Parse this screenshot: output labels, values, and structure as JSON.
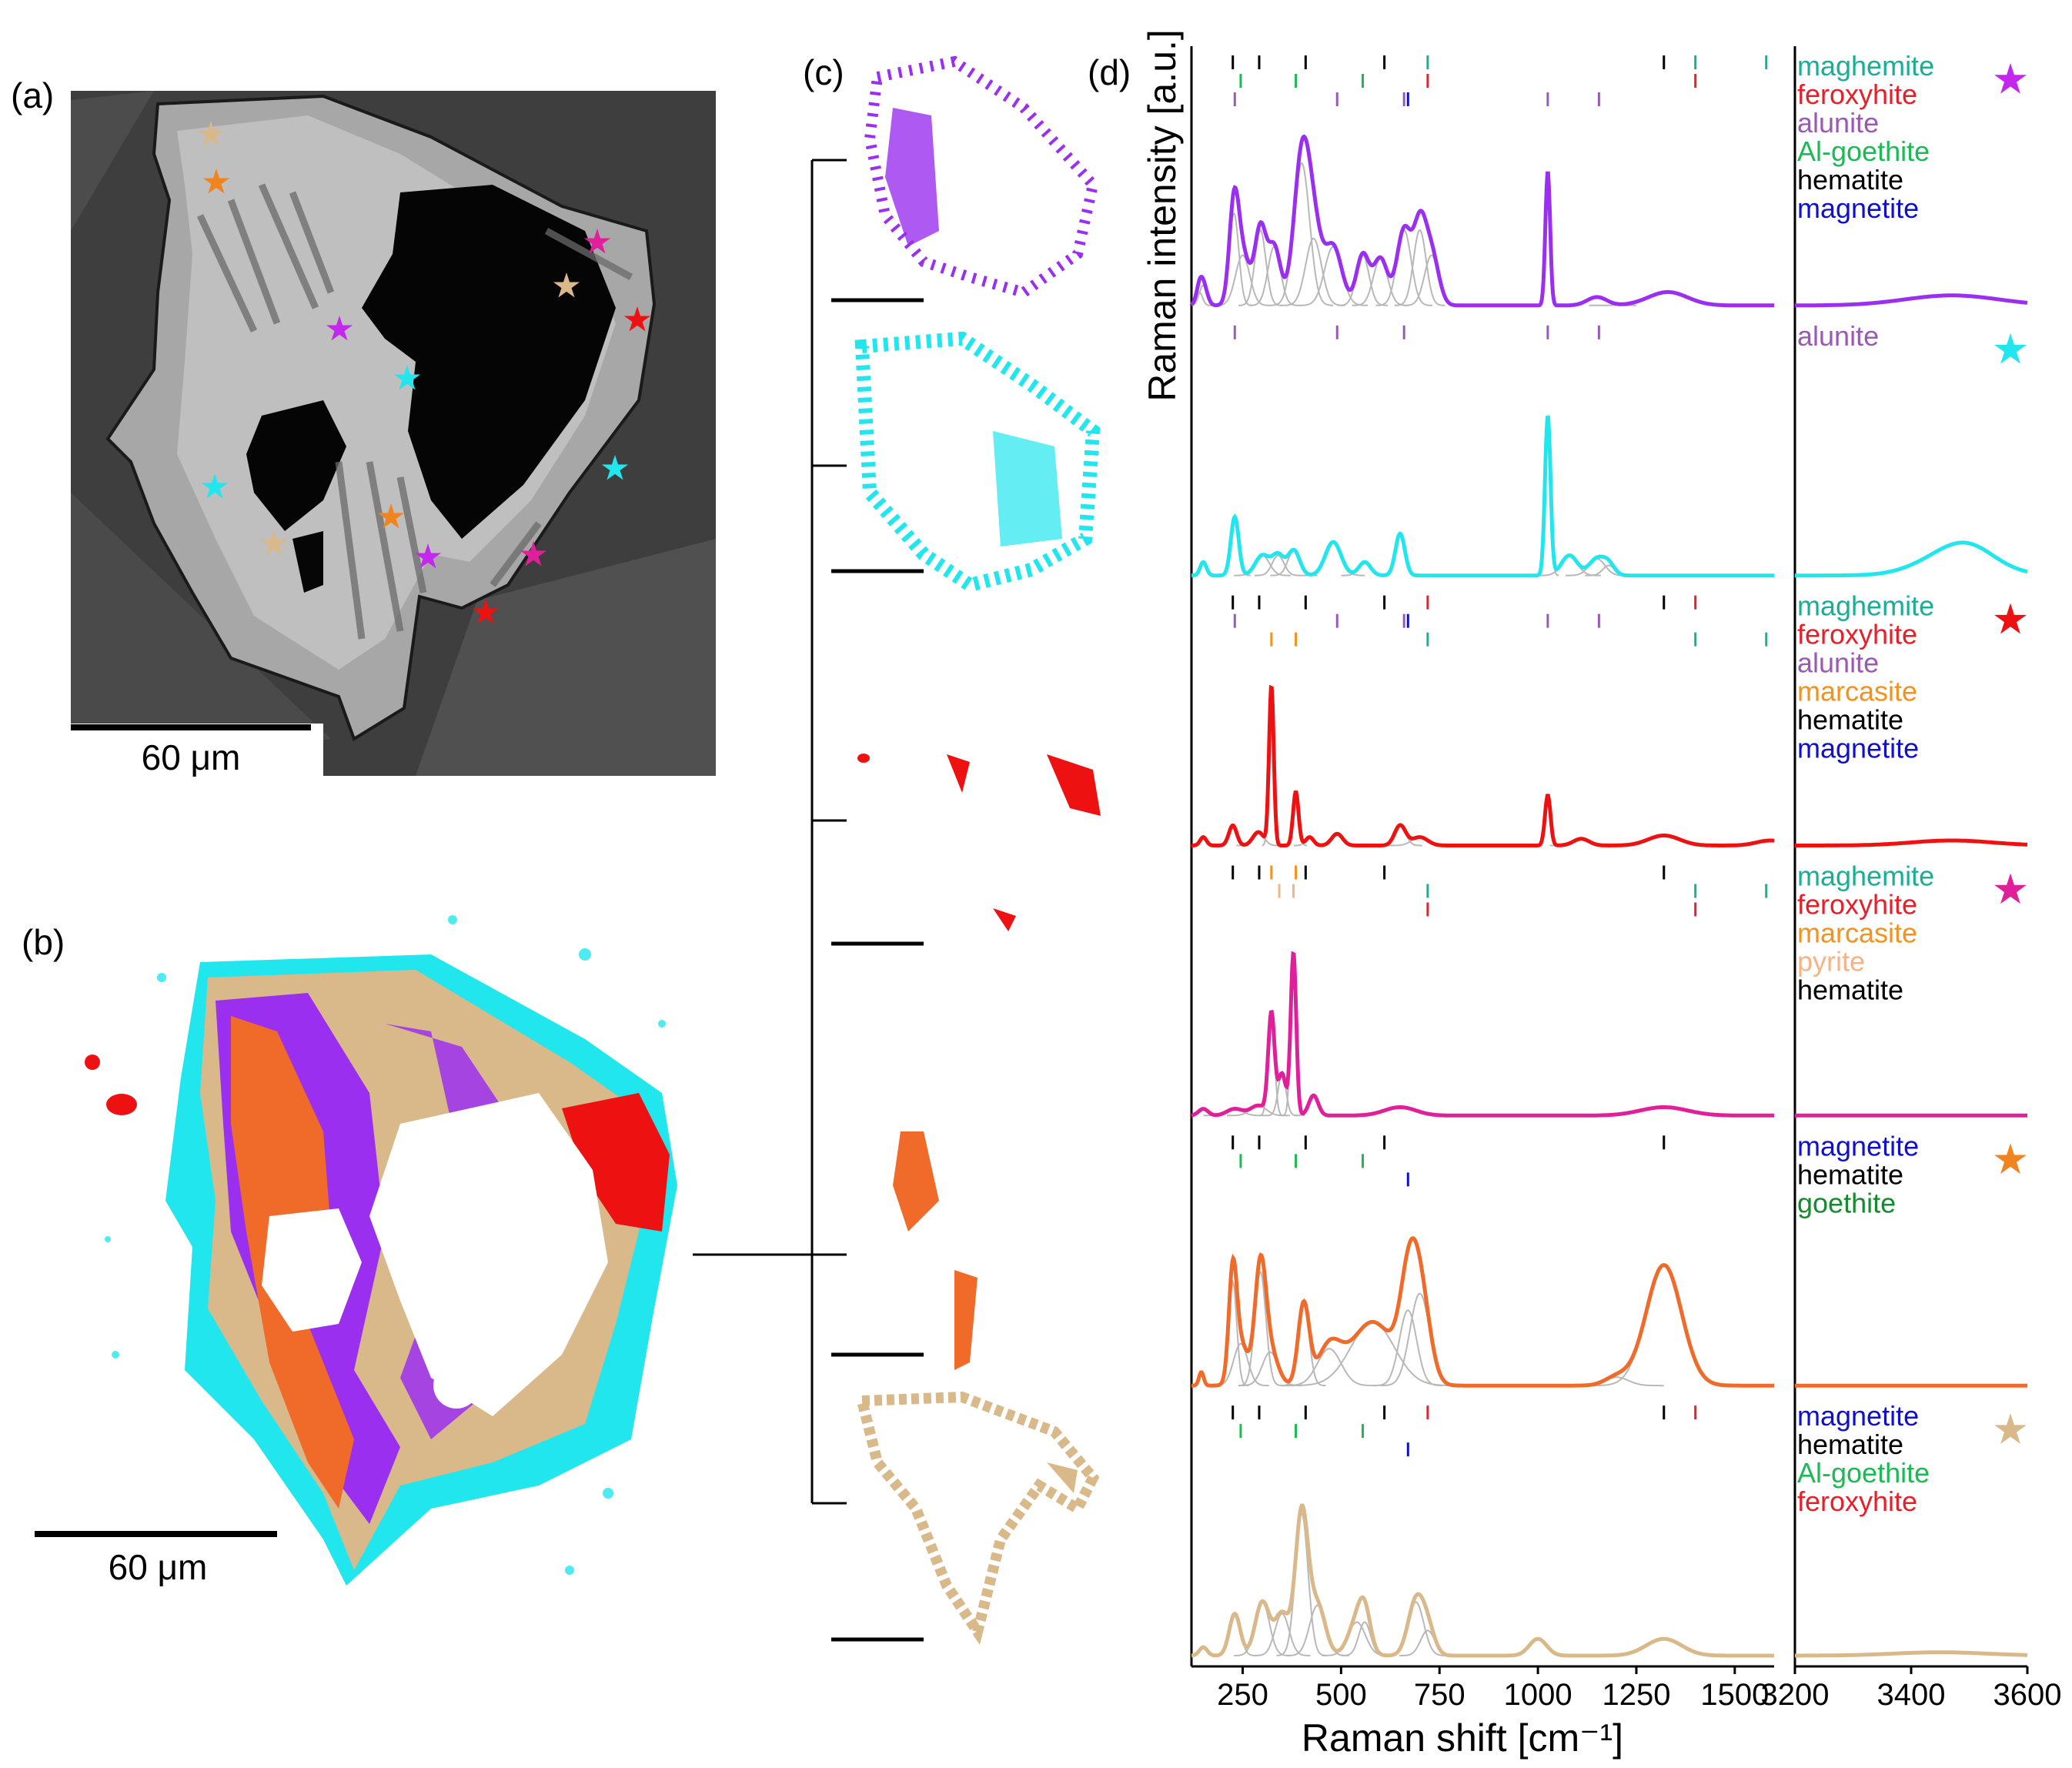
{
  "figure": {
    "panel_labels": {
      "a": "(a)",
      "b": "(b)",
      "c": "(c)",
      "d": "(d)"
    },
    "scalebar_a": "60 μm",
    "scalebar_b": "60 μm"
  },
  "colors": {
    "purple": "#9B2FF0",
    "cyan": "#22E6EE",
    "red": "#EE1111",
    "magenta": "#E0209A",
    "orange": "#F06A2A",
    "tan": "#D9B98A",
    "maghemite": "#1AAE94",
    "feroxyhite": "#E5202A",
    "alunite": "#9B59B6",
    "algoethite": "#1DB954",
    "goethite": "#178A2F",
    "hematite": "#000000",
    "magnetite": "#1010CC",
    "marcasite": "#F4921E",
    "pyrite": "#F6B486",
    "component": "#B8B8B8"
  },
  "chart_data": {
    "type": "line",
    "xlabel": "Raman shift [cm⁻¹]",
    "ylabel": "Raman intensity [a.u.]",
    "xlim_main": [
      120,
      1600
    ],
    "xlim_oh": [
      3200,
      3600
    ],
    "xticks_main": [
      "250",
      "500",
      "750",
      "1000",
      "1250",
      "1500"
    ],
    "xticks_oh": [
      "3200",
      "3400",
      "3600"
    ],
    "series": [
      {
        "star": "purple",
        "legend": [
          {
            "label": "maghemite",
            "color": "maghemite"
          },
          {
            "label": "feroxyhite",
            "color": "feroxyhite"
          },
          {
            "label": "alunite",
            "color": "alunite"
          },
          {
            "label": "Al-goethite",
            "color": "algoethite"
          },
          {
            "label": "hematite",
            "color": "hematite"
          },
          {
            "label": "magnetite",
            "color": "magnetite"
          }
        ],
        "peaks": [
          [
            140,
            0.08,
            8
          ],
          [
            150,
            0.12,
            10
          ],
          [
            228,
            0.55,
            12
          ],
          [
            250,
            0.3,
            18
          ],
          [
            295,
            0.45,
            14
          ],
          [
            330,
            0.35,
            16
          ],
          [
            400,
            0.85,
            20
          ],
          [
            430,
            0.4,
            20
          ],
          [
            480,
            0.35,
            22
          ],
          [
            555,
            0.3,
            16
          ],
          [
            600,
            0.28,
            18
          ],
          [
            660,
            0.45,
            18
          ],
          [
            700,
            0.45,
            16
          ],
          [
            730,
            0.3,
            18
          ],
          [
            1025,
            0.8,
            6
          ],
          [
            1150,
            0.05,
            25
          ],
          [
            1330,
            0.08,
            50
          ]
        ],
        "oh_peaks": [
          [
            3470,
            0.06,
            80
          ]
        ]
      },
      {
        "star": "cyan",
        "legend": [
          {
            "label": "alunite",
            "color": "alunite"
          }
        ],
        "peaks": [
          [
            150,
            0.08,
            8
          ],
          [
            230,
            0.35,
            10
          ],
          [
            300,
            0.12,
            18
          ],
          [
            340,
            0.12,
            15
          ],
          [
            380,
            0.15,
            15
          ],
          [
            480,
            0.2,
            20
          ],
          [
            560,
            0.08,
            15
          ],
          [
            650,
            0.25,
            12
          ],
          [
            1025,
            0.95,
            7
          ],
          [
            1080,
            0.12,
            20
          ],
          [
            1150,
            0.1,
            20
          ],
          [
            1180,
            0.06,
            15
          ]
        ],
        "oh_peaks": [
          [
            3480,
            0.15,
            60
          ],
          [
            3500,
            0.05,
            40
          ]
        ]
      },
      {
        "star": "red",
        "legend": [
          {
            "label": "maghemite",
            "color": "maghemite"
          },
          {
            "label": "feroxyhite",
            "color": "feroxyhite"
          },
          {
            "label": "alunite",
            "color": "alunite"
          },
          {
            "label": "marcasite",
            "color": "marcasite"
          },
          {
            "label": "hematite",
            "color": "hematite"
          },
          {
            "label": "magnetite",
            "color": "magnetite"
          }
        ],
        "peaks": [
          [
            150,
            0.05,
            8
          ],
          [
            225,
            0.12,
            10
          ],
          [
            290,
            0.08,
            14
          ],
          [
            323,
            0.95,
            6
          ],
          [
            385,
            0.32,
            7
          ],
          [
            420,
            0.05,
            10
          ],
          [
            490,
            0.07,
            14
          ],
          [
            650,
            0.12,
            14
          ],
          [
            700,
            0.05,
            20
          ],
          [
            1025,
            0.3,
            7
          ],
          [
            1110,
            0.04,
            20
          ],
          [
            1320,
            0.06,
            40
          ],
          [
            1590,
            0.03,
            35
          ]
        ],
        "oh_peaks": [
          [
            3470,
            0.03,
            70
          ]
        ]
      },
      {
        "star": "magenta",
        "legend": [
          {
            "label": "maghemite",
            "color": "maghemite"
          },
          {
            "label": "feroxyhite",
            "color": "feroxyhite"
          },
          {
            "label": "marcasite",
            "color": "marcasite"
          },
          {
            "label": "pyrite",
            "color": "pyrite"
          },
          {
            "label": "hematite",
            "color": "hematite"
          }
        ],
        "peaks": [
          [
            150,
            0.04,
            12
          ],
          [
            230,
            0.04,
            20
          ],
          [
            290,
            0.06,
            20
          ],
          [
            323,
            0.6,
            8
          ],
          [
            350,
            0.25,
            10
          ],
          [
            379,
            0.97,
            7
          ],
          [
            430,
            0.12,
            12
          ],
          [
            650,
            0.05,
            40
          ],
          [
            1320,
            0.05,
            60
          ]
        ],
        "oh_peaks": []
      },
      {
        "star": "orange",
        "legend": [
          {
            "label": "magnetite",
            "color": "magnetite"
          },
          {
            "label": "hematite",
            "color": "hematite"
          },
          {
            "label": "goethite",
            "color": "goethite"
          }
        ],
        "peaks": [
          [
            145,
            0.08,
            6
          ],
          [
            225,
            0.62,
            10
          ],
          [
            245,
            0.25,
            18
          ],
          [
            295,
            0.68,
            14
          ],
          [
            320,
            0.2,
            20
          ],
          [
            405,
            0.48,
            14
          ],
          [
            470,
            0.22,
            30
          ],
          [
            580,
            0.38,
            55
          ],
          [
            670,
            0.45,
            22
          ],
          [
            700,
            0.55,
            25
          ],
          [
            1320,
            0.72,
            45
          ],
          [
            1200,
            0.05,
            30
          ]
        ],
        "oh_peaks": []
      },
      {
        "star": "tan",
        "legend": [
          {
            "label": "magnetite",
            "color": "magnetite"
          },
          {
            "label": "hematite",
            "color": "hematite"
          },
          {
            "label": "Al-goethite",
            "color": "algoethite"
          },
          {
            "label": "feroxyhite",
            "color": "feroxyhite"
          }
        ],
        "peaks": [
          [
            150,
            0.05,
            10
          ],
          [
            230,
            0.25,
            14
          ],
          [
            300,
            0.32,
            18
          ],
          [
            350,
            0.25,
            18
          ],
          [
            400,
            0.85,
            16
          ],
          [
            440,
            0.3,
            20
          ],
          [
            540,
            0.2,
            22
          ],
          [
            560,
            0.2,
            15
          ],
          [
            690,
            0.32,
            20
          ],
          [
            720,
            0.15,
            18
          ],
          [
            1000,
            0.1,
            22
          ],
          [
            1320,
            0.1,
            45
          ]
        ],
        "oh_peaks": [
          [
            3450,
            0.02,
            80
          ]
        ]
      }
    ],
    "reference_ticks": {
      "hematite": [
        225,
        292,
        410,
        610,
        1320
      ],
      "goethite": [
        245,
        385,
        555
      ],
      "magnetite": [
        670
      ],
      "maghemite": [
        720,
        1400,
        1580
      ],
      "feroxyhite": [
        720,
        1400
      ],
      "alunite": [
        230,
        490,
        660,
        1025,
        1155
      ],
      "marcasite": [
        323,
        385
      ],
      "pyrite": [
        343,
        379
      ]
    }
  }
}
